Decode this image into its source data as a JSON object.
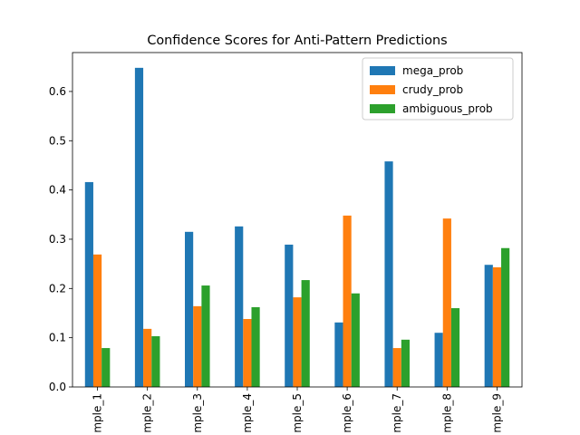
{
  "chart_data": {
    "type": "bar",
    "title": "Confidence Scores for Anti-Pattern Predictions",
    "categories": [
      "mple_1",
      "mple_2",
      "mple_3",
      "mple_4",
      "mple_5",
      "mple_6",
      "mple_7",
      "mple_8",
      "mple_9"
    ],
    "series": [
      {
        "name": "mega_prob",
        "color": "#1f77b4",
        "values": [
          0.416,
          0.648,
          0.315,
          0.326,
          0.289,
          0.131,
          0.458,
          0.11,
          0.248
        ]
      },
      {
        "name": "crudy_prob",
        "color": "#ff7f0e",
        "values": [
          0.269,
          0.118,
          0.164,
          0.138,
          0.182,
          0.348,
          0.079,
          0.342,
          0.243
        ]
      },
      {
        "name": "ambiguous_prob",
        "color": "#2ca02c",
        "values": [
          0.079,
          0.103,
          0.206,
          0.162,
          0.217,
          0.19,
          0.096,
          0.16,
          0.282
        ]
      }
    ],
    "ylim": [
      0,
      0.679
    ],
    "yticks": [
      0.0,
      0.1,
      0.2,
      0.3,
      0.4,
      0.5,
      0.6
    ],
    "legend": "upper right"
  }
}
